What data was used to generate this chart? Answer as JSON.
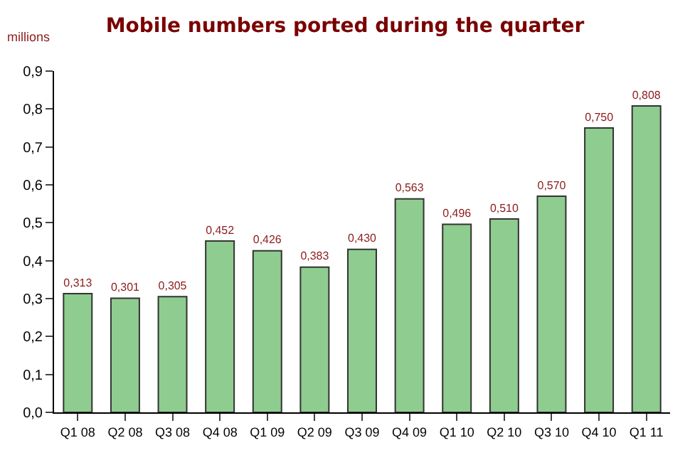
{
  "chart_data": {
    "type": "bar",
    "title": "Mobile numbers ported during the quarter",
    "ylabel": "millions",
    "categories": [
      "Q1 08",
      "Q2 08",
      "Q3 08",
      "Q4 08",
      "Q1 09",
      "Q2 09",
      "Q3 09",
      "Q4 09",
      "Q1 10",
      "Q2 10",
      "Q3 10",
      "Q4 10",
      "Q1 11"
    ],
    "values": [
      0.313,
      0.301,
      0.305,
      0.452,
      0.426,
      0.383,
      0.43,
      0.563,
      0.496,
      0.51,
      0.57,
      0.75,
      0.808
    ],
    "value_labels": [
      "0,313",
      "0,301",
      "0,305",
      "0,452",
      "0,426",
      "0,383",
      "0,430",
      "0,563",
      "0,496",
      "0,510",
      "0,570",
      "0,750",
      "0,808"
    ],
    "color": "#8fcc8f",
    "ylim": [
      0,
      0.9
    ],
    "yticks": [
      {
        "value": 0,
        "label": "0,0"
      },
      {
        "value": 0.1,
        "label": "0,1"
      },
      {
        "value": 0.2,
        "label": "0,2"
      },
      {
        "value": 0.3,
        "label": "0,3"
      },
      {
        "value": 0.4,
        "label": "0,4"
      },
      {
        "value": 0.5,
        "label": "0,5"
      },
      {
        "value": 0.6,
        "label": "0,6"
      },
      {
        "value": 0.7,
        "label": "0,7"
      },
      {
        "value": 0.8,
        "label": "0,8"
      },
      {
        "value": 0.9,
        "label": "0,9"
      }
    ],
    "grid": false
  }
}
